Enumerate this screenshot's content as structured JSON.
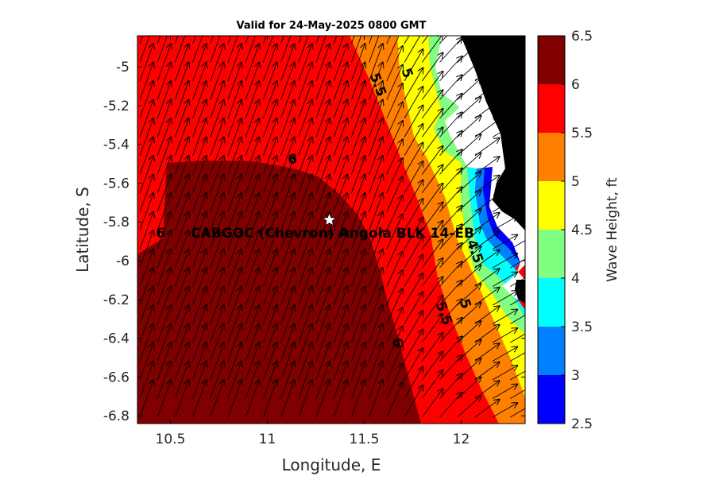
{
  "chart_data": {
    "type": "heatmap",
    "title": "Valid for 24-May-2025 0800 GMT",
    "xlabel": "Longitude, E",
    "ylabel": "Latitude, S",
    "xlim": [
      10.33,
      12.33
    ],
    "ylim": [
      -6.84,
      -4.84
    ],
    "xticks": [
      10.5,
      11,
      11.5,
      12
    ],
    "yticks": [
      -5,
      -5.2,
      -5.4,
      -5.6,
      -5.8,
      -6,
      -6.2,
      -6.4,
      -6.6,
      -6.8
    ],
    "colorbar": {
      "label": "Wave Height, ft",
      "ticks": [
        2.5,
        3,
        3.5,
        4,
        4.5,
        5,
        5.5,
        6,
        6.5
      ],
      "bands": [
        {
          "from": 2.5,
          "to": 3.0,
          "color": "#0000ff"
        },
        {
          "from": 3.0,
          "to": 3.5,
          "color": "#0080ff"
        },
        {
          "from": 3.5,
          "to": 4.0,
          "color": "#00ffff"
        },
        {
          "from": 4.0,
          "to": 4.5,
          "color": "#80ff80"
        },
        {
          "from": 4.5,
          "to": 5.0,
          "color": "#ffff00"
        },
        {
          "from": 5.0,
          "to": 5.5,
          "color": "#ff8000"
        },
        {
          "from": 5.5,
          "to": 6.0,
          "color": "#ff0000"
        },
        {
          "from": 6.0,
          "to": 6.5,
          "color": "#800000"
        }
      ]
    },
    "contour_labels": [
      {
        "text": "6",
        "lon": 11.13,
        "lat": -5.5
      },
      {
        "text": "6",
        "lon": 10.45,
        "lat": -5.88
      },
      {
        "text": "6",
        "lon": 11.65,
        "lat": -6.43
      },
      {
        "text": "5.5",
        "lon": 11.55,
        "lat": -5.1
      },
      {
        "text": "5.5",
        "lon": 11.89,
        "lat": -6.28
      },
      {
        "text": "5",
        "lon": 11.7,
        "lat": -5.04
      },
      {
        "text": "5",
        "lon": 12.0,
        "lat": -6.23
      },
      {
        "text": "4.5",
        "lon": 12.05,
        "lat": -5.96
      }
    ],
    "station": {
      "label": "CABGOC (Chevron)  Angola BLK 14-EB",
      "lon": 11.32,
      "lat": -5.79
    },
    "land_color": "#000000",
    "arrows": "wave direction arrows on a regular grid, pointing north-north-east offshore and north-east near the coast"
  }
}
